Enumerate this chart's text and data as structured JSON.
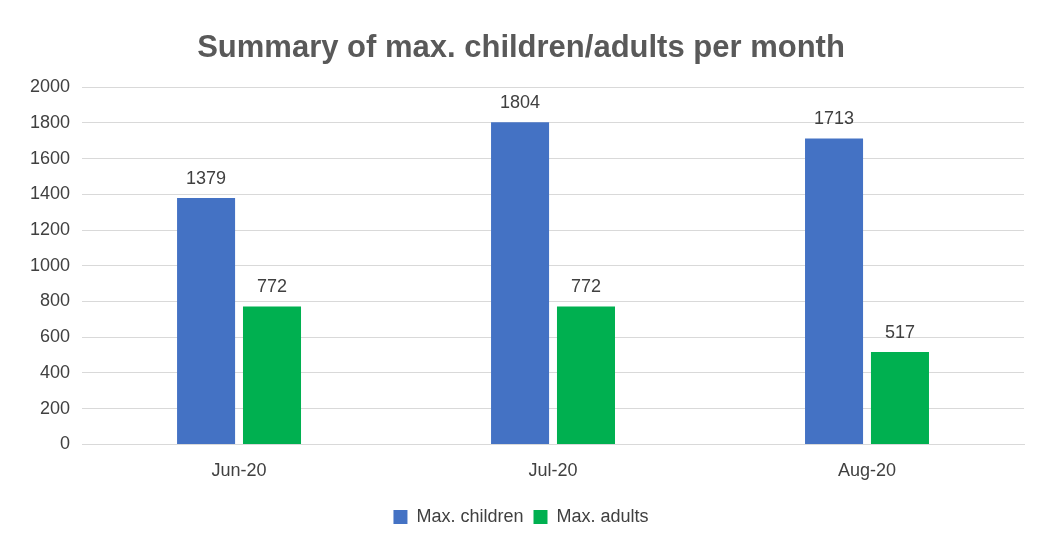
{
  "chart_data": {
    "type": "bar",
    "title": "Summary of max. children/adults per month",
    "categories": [
      "Jun-20",
      "Jul-20",
      "Aug-20"
    ],
    "series": [
      {
        "name": "Max. children",
        "color": "#4472c4",
        "values": [
          1379,
          1804,
          1713
        ]
      },
      {
        "name": "Max. adults",
        "color": "#00b050",
        "values": [
          772,
          772,
          517
        ]
      }
    ],
    "ylim": [
      0,
      2000
    ],
    "yticks": [
      0,
      200,
      400,
      600,
      800,
      1000,
      1200,
      1400,
      1600,
      1800,
      2000
    ],
    "grid": "y",
    "legend": "bottom",
    "data_labels": true
  }
}
